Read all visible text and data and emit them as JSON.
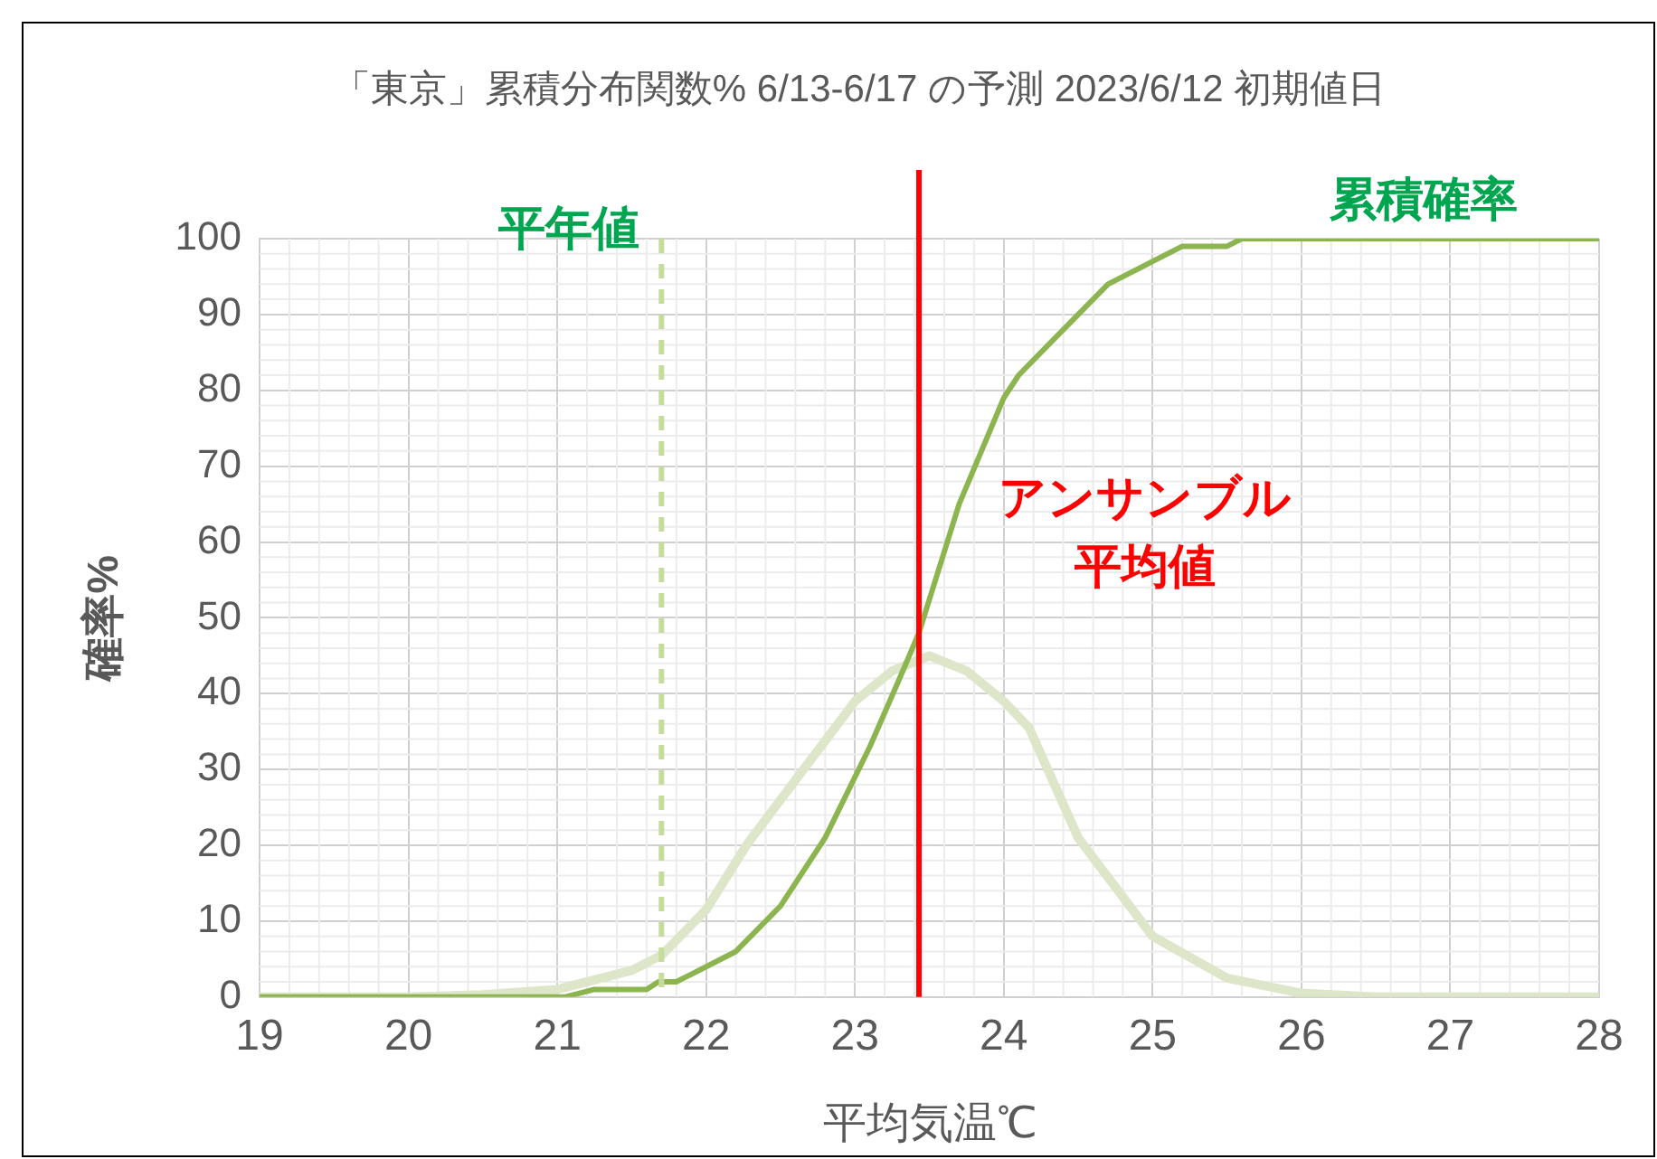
{
  "chart_data": {
    "type": "line",
    "title": "「東京」累積分布関数% 6/13-6/17 の予測  2023/6/12 初期値日",
    "xlabel": "平均気温℃",
    "ylabel": "確率%",
    "xlim": [
      19,
      28
    ],
    "xticks": [
      19,
      20,
      21,
      22,
      23,
      24,
      25,
      26,
      27,
      28
    ],
    "ylim": [
      0,
      100
    ],
    "yticks": [
      0,
      10,
      20,
      30,
      40,
      50,
      60,
      70,
      80,
      90,
      100
    ],
    "grid": true,
    "legend": false,
    "marker": "none",
    "series": [
      {
        "color": "#dde6c8",
        "x": [
          19,
          20,
          20.5,
          21,
          21.5,
          21.7,
          22,
          22.27,
          22.5,
          23,
          23.25,
          23.5,
          23.75,
          24,
          24.17,
          24.5,
          25,
          25.5,
          26,
          26.5,
          28
        ],
        "values": [
          0,
          0,
          0.3,
          1,
          3.5,
          5.5,
          11.5,
          20,
          26,
          39,
          43,
          45,
          43,
          39,
          35.5,
          21,
          8,
          2.5,
          0.5,
          0,
          0
        ]
      },
      {
        "name": "累積確率",
        "color": "#8cb54f",
        "x": [
          19,
          21.05,
          21.25,
          21.6,
          21.68,
          21.8,
          22.2,
          22.5,
          22.8,
          23.1,
          23.3,
          23.43,
          23.7,
          24,
          24.1,
          24.3,
          24.7,
          25,
          25.2,
          25.5,
          25.6,
          28
        ],
        "values": [
          0,
          0,
          1,
          1,
          2,
          2,
          6,
          12,
          21,
          33,
          42,
          48,
          65,
          79,
          82,
          86,
          94,
          97,
          99,
          99,
          100,
          100
        ]
      }
    ],
    "ref_lines": [
      {
        "axis": "x",
        "value": 21.7,
        "label": "平年値",
        "color": "#c5dc9b",
        "line_style": "dashed"
      },
      {
        "axis": "x",
        "value": 23.43,
        "label": "アンサンブル平均値",
        "color": "#ff0000",
        "line_style": "solid"
      }
    ]
  }
}
